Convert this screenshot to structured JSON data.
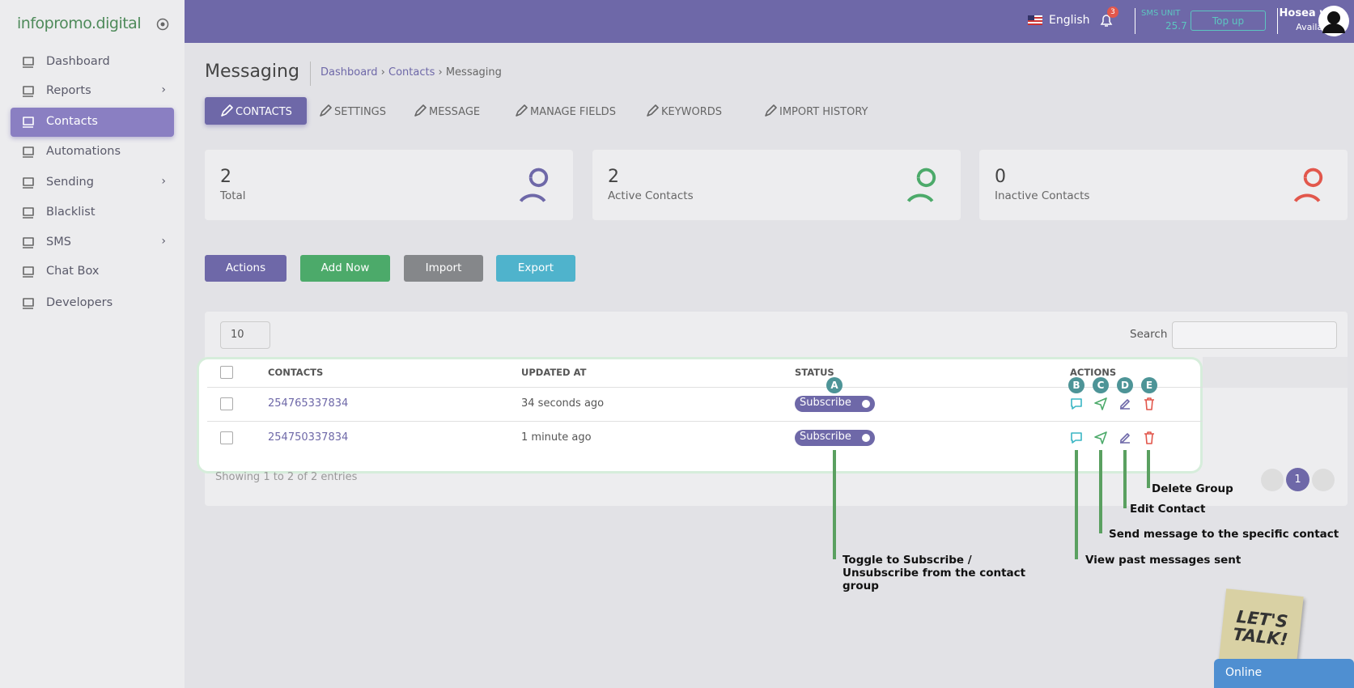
{
  "sidebar": {
    "logo": "infopromo.digital",
    "menu": [
      "Dashboard",
      "Reports",
      "Contacts",
      "Automations",
      "Sending",
      "Blacklist",
      "SMS",
      "Chat Box",
      "Developers"
    ]
  },
  "topbar": {
    "language": "English",
    "notifications": "3",
    "sms_unit_label": "SMS UNIT",
    "sms_unit_value": "25.7",
    "top_up": "Top up",
    "user_name": "Hosea wa",
    "user_status": "Available"
  },
  "header": {
    "title": "Messaging",
    "breadcrumbs": [
      "Dashboard",
      "Contacts",
      "Messaging"
    ]
  },
  "tabs": [
    "CONTACTS",
    "SETTINGS",
    "MESSAGE",
    "MANAGE FIELDS",
    "KEYWORDS",
    "IMPORT HISTORY"
  ],
  "stats": [
    {
      "value": "2",
      "label": "Total"
    },
    {
      "value": "2",
      "label": "Active Contacts"
    },
    {
      "value": "0",
      "label": "Inactive Contacts"
    }
  ],
  "buttons": [
    "Actions",
    "Add Now",
    "Import",
    "Export"
  ],
  "table": {
    "page_size": "10",
    "search_label": "Search",
    "columns": [
      "CONTACTS",
      "UPDATED AT",
      "STATUS",
      "ACTIONS"
    ],
    "rows": [
      [
        "254765337834",
        "34 seconds ago",
        "Subscribe"
      ],
      [
        "254750337834",
        "1 minute ago",
        "Subscribe"
      ]
    ],
    "footer": "Showing 1 to 2 of 2 entries",
    "page": "1"
  },
  "annotations": {
    "markers": [
      "A",
      "B",
      "C",
      "D",
      "E"
    ],
    "callouts": [
      "Toggle to Subscribe / Unsubscribe from the contact group",
      "View past messages sent",
      "Send message to the specific contact",
      "Edit Contact",
      "Delete Group"
    ]
  },
  "chat": {
    "sticker": "LET'S TALK!",
    "status": "Online"
  }
}
